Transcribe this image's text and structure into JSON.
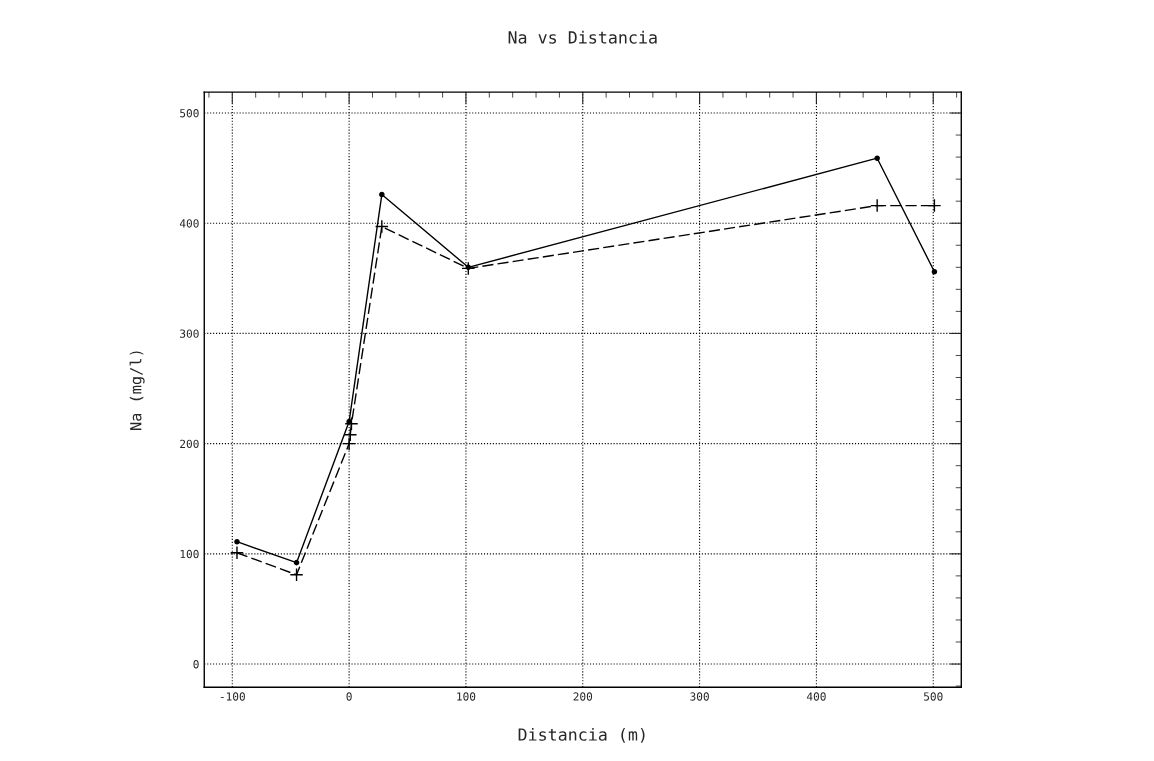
{
  "chart_data": {
    "type": "line",
    "title": "Na vs Distancia",
    "xlabel": "Distancia (m)",
    "ylabel": "Na (mg/l)",
    "xlim": [
      -124,
      524
    ],
    "ylim": [
      -21,
      519
    ],
    "xticks": [
      -100,
      0,
      100,
      200,
      300,
      400,
      500
    ],
    "yticks": [
      0,
      100,
      200,
      300,
      400,
      500
    ],
    "grid": true,
    "series": [
      {
        "color": "#000000",
        "marker": "circle",
        "line_style": "solid",
        "x": [
          -96,
          -45,
          0,
          28,
          102,
          452,
          501
        ],
        "values": [
          111,
          92,
          220,
          426,
          360,
          459,
          356
        ]
      },
      {
        "color": "#000000",
        "marker": "cross",
        "line_style": "dashed",
        "x": [
          -96,
          -45,
          0,
          1,
          2,
          28,
          102,
          452,
          501
        ],
        "values": [
          101,
          81,
          200,
          208,
          218,
          397,
          359,
          416,
          416
        ]
      }
    ]
  }
}
